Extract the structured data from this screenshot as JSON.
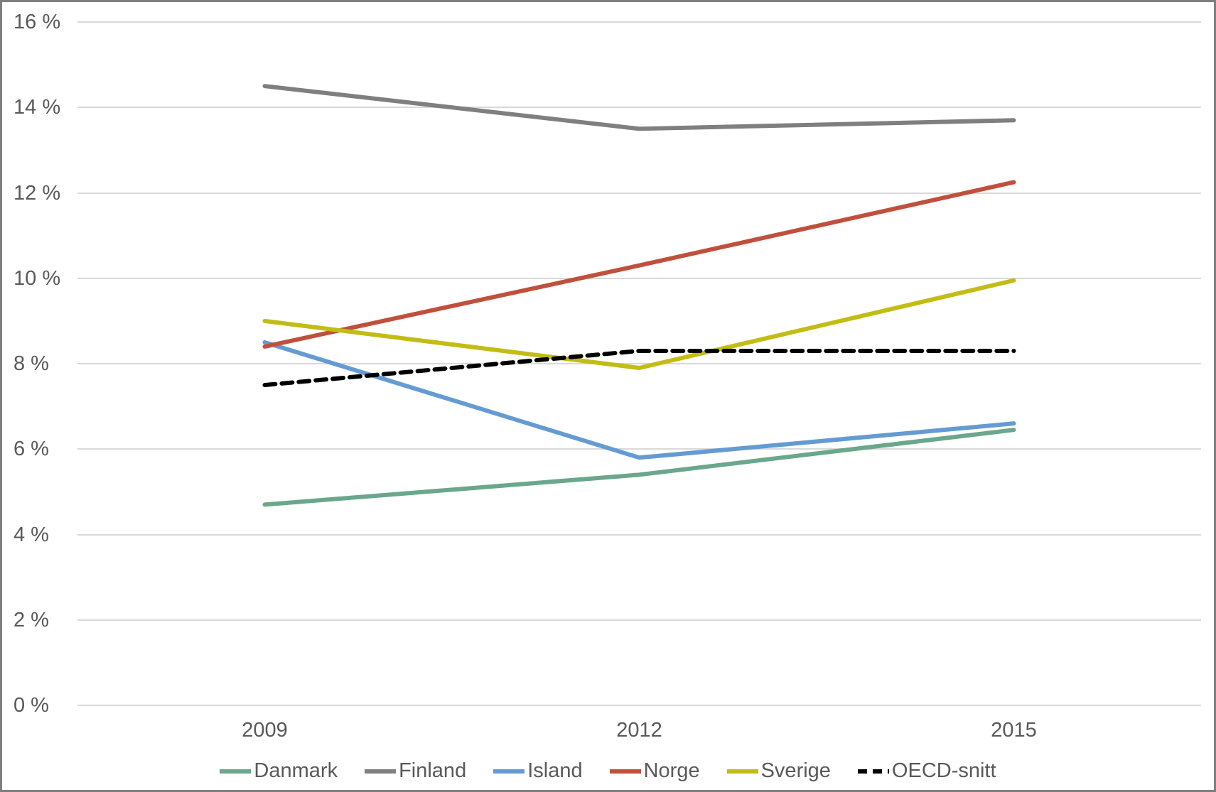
{
  "window": {
    "background_color": "#ffffff",
    "border_color": "#7f7f7f"
  },
  "chart_data": {
    "type": "line",
    "title": "",
    "xlabel": "",
    "ylabel": "",
    "categories": [
      "2009",
      "2012",
      "2015"
    ],
    "y_axis": {
      "min": 0,
      "max": 16,
      "step": 2,
      "unit": "%",
      "tick_labels": [
        "0 %",
        "2 %",
        "4 %",
        "6 %",
        "8 %",
        "10 %",
        "12 %",
        "14 %",
        "16 %"
      ]
    },
    "series": [
      {
        "name": "Danmark",
        "color": "#6aa78c",
        "dashed": false,
        "values": [
          4.7,
          5.4,
          6.45
        ]
      },
      {
        "name": "Finland",
        "color": "#7f7f7f",
        "dashed": false,
        "values": [
          14.5,
          13.5,
          13.7
        ]
      },
      {
        "name": "Island",
        "color": "#649bd2",
        "dashed": false,
        "values": [
          8.5,
          5.8,
          6.6
        ]
      },
      {
        "name": "Norge",
        "color": "#c0503c",
        "dashed": false,
        "values": [
          8.4,
          10.3,
          12.25
        ]
      },
      {
        "name": "Sverige",
        "color": "#c3bc14",
        "dashed": false,
        "values": [
          9.0,
          7.9,
          9.95
        ]
      },
      {
        "name": "OECD-snitt",
        "color": "#000000",
        "dashed": true,
        "values": [
          7.5,
          8.3,
          8.3
        ]
      }
    ],
    "grid": true,
    "gridline_color": "#d9d9d9",
    "text_color": "#595959",
    "legend_position": "bottom"
  }
}
